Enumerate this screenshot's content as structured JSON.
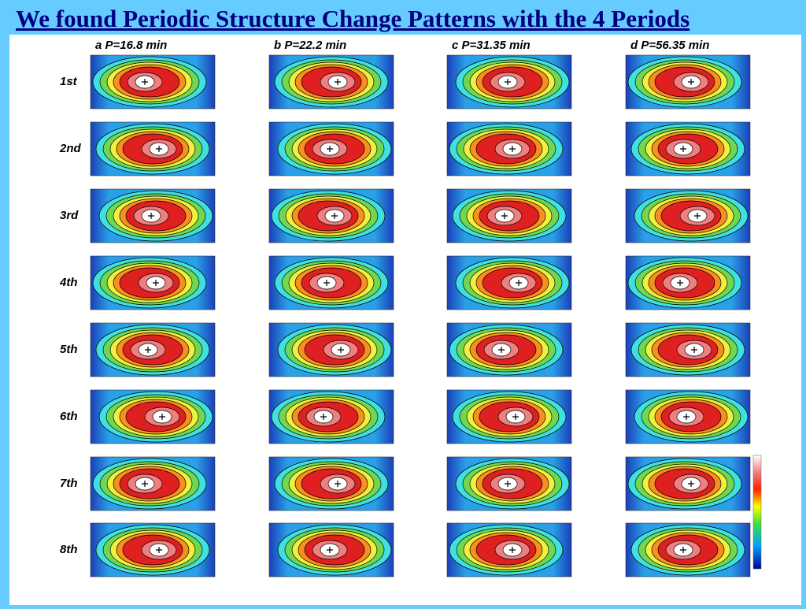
{
  "header": {
    "title": "We found Periodic Structure Change Patterns with the 4 Periods"
  },
  "figure": {
    "columns": [
      "a P=16.8 min",
      "b P=22.2 min",
      "c P=31.35 min",
      "d P=56.35 min"
    ],
    "rows": [
      "1st",
      "2nd",
      "3rd",
      "4th",
      "5th",
      "6th",
      "7th",
      "8th"
    ]
  }
}
